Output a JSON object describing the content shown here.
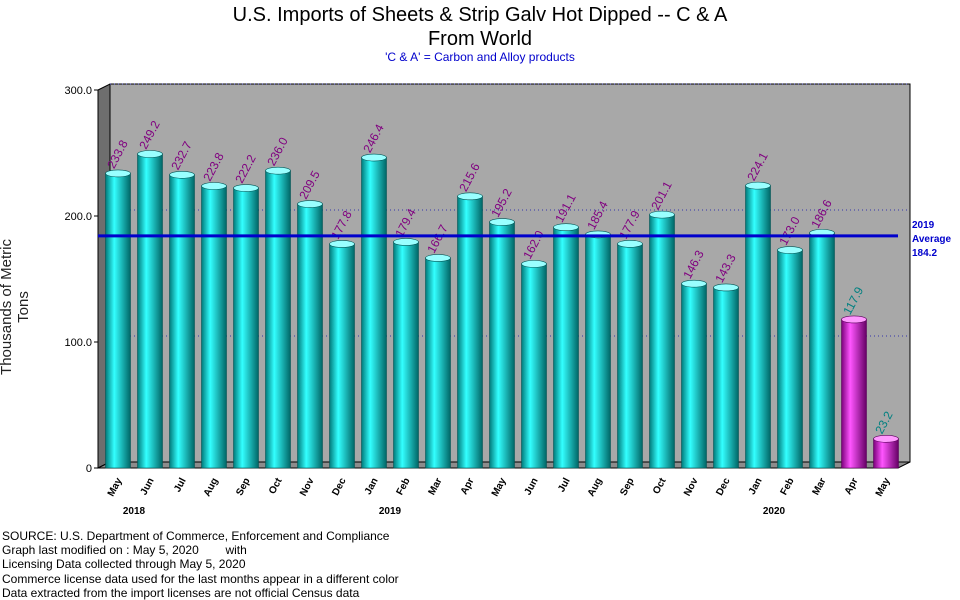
{
  "chart_data": {
    "type": "bar",
    "title_line1": "U.S. Imports of Sheets & Strip Galv Hot Dipped -- C & A",
    "title_line2": "From World",
    "subtitle": "'C & A' = Carbon and Alloy products",
    "ylabel": "Thousands of Metric Tons",
    "ylim": [
      0,
      300
    ],
    "yticks": [
      "0",
      "100.0",
      "200.0",
      "300.0"
    ],
    "categories": [
      "May",
      "Jun",
      "Jul",
      "Aug",
      "Sep",
      "Oct",
      "Nov",
      "Dec",
      "Jan",
      "Feb",
      "Mar",
      "Apr",
      "May",
      "Jun",
      "Jul",
      "Aug",
      "Sep",
      "Oct",
      "Nov",
      "Dec",
      "Jan",
      "Feb",
      "Mar",
      "Apr",
      "May"
    ],
    "values": [
      233.8,
      249.2,
      232.7,
      223.8,
      222.2,
      236.0,
      209.5,
      177.8,
      246.4,
      179.4,
      166.7,
      215.6,
      195.2,
      162.0,
      191.1,
      185.4,
      177.9,
      201.1,
      146.3,
      143.3,
      224.1,
      173.0,
      186.6,
      117.9,
      23.2
    ],
    "value_labels": [
      "233.8",
      "249.2",
      "232.7",
      "223.8",
      "222.2",
      "236.0",
      "209.5",
      "177.8",
      "246.4",
      "179.4",
      "166.7",
      "215.6",
      "195.2",
      "162.0",
      "191.1",
      "185.4",
      "177.9",
      "201.1",
      "146.3",
      "143.3",
      "224.1",
      "173.0",
      "186.6",
      "117.9",
      "23.2"
    ],
    "license_data_from_index": 23,
    "years": [
      {
        "label": "2018",
        "index": 0
      },
      {
        "label": "2019",
        "index": 8
      },
      {
        "label": "2020",
        "index": 20
      }
    ],
    "average": {
      "value": 184.2,
      "label_lines": [
        "2019",
        "Average",
        "184.2"
      ]
    },
    "grid": true,
    "colors": {
      "census_bar": "#00c8c8",
      "license_bar": "#c800c8",
      "census_label": "#800080",
      "license_label": "#008080",
      "average_line": "#0000cc",
      "plot_bg": "#a8a8a8"
    }
  },
  "source_lines": [
    "SOURCE: U.S. Department of Commerce, Enforcement and Compliance",
    "Graph last modified on : May 5, 2020        with",
    "Licensing Data collected through May 5, 2020",
    "Commerce license data used for the last months appear in a different color",
    "Data extracted from the import licenses are not official Census data"
  ]
}
